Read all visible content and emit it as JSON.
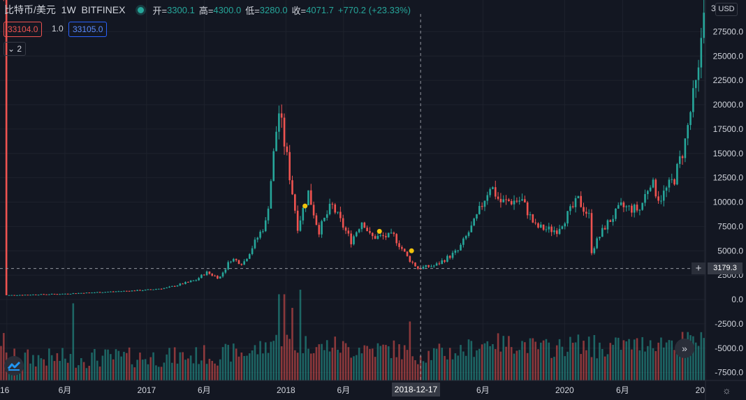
{
  "header": {
    "symbol": "比特币/美元",
    "interval": "1W",
    "exchange": "BITFINEX",
    "open_label": "开=",
    "open": "3300.1",
    "high_label": "高=",
    "high": "4300.0",
    "low_label": "低=",
    "low": "3280.0",
    "close_label": "收=",
    "close": "4071.7",
    "change": "+770.2 (+23.33%)"
  },
  "trade": {
    "sell_price": "33104.0",
    "quantity": "1.0",
    "buy_price": "33105.0"
  },
  "indicators": {
    "collapse_label": "2",
    "collapse_icon": "chevron-down-icon"
  },
  "currency": "USD",
  "crosshair": {
    "price_label": "3179.3",
    "date_label": "2018-12-17",
    "plus_icon": "plus-icon"
  },
  "controls": {
    "scroll_icon": "fast-forward-icon",
    "settings_icon": "gear-icon",
    "logo_icon": "tradingview-logo-icon"
  },
  "colors": {
    "up": "#26a69a",
    "down": "#ef5350",
    "background": "#131722",
    "grid": "#1e222d",
    "marker": "#f0c20c"
  },
  "chart_data": {
    "type": "candlestick",
    "y_ticks": [
      "27500.0",
      "25000.0",
      "22500.0",
      "20000.0",
      "17500.0",
      "15000.0",
      "12500.0",
      "10000.0",
      "7500.0",
      "5000.0",
      "2500.0",
      "0.0",
      "-2500.0",
      "-5000.0",
      "-7500.0"
    ],
    "y_top_partial_label": "3",
    "x_ticks": [
      {
        "date": "2016-01-01",
        "label": "16"
      },
      {
        "date": "2016-06-01",
        "label": "6月"
      },
      {
        "date": "2017-01-01",
        "label": "2017"
      },
      {
        "date": "2017-06-01",
        "label": "6月"
      },
      {
        "date": "2018-01-01",
        "label": "2018"
      },
      {
        "date": "2018-06-01",
        "label": "6月"
      },
      {
        "date": "2019-06-01",
        "label": "6月"
      },
      {
        "date": "2020-01-01",
        "label": "2020"
      },
      {
        "date": "2020-06-01",
        "label": "6月"
      },
      {
        "date": "2021-01-01",
        "label": "20"
      }
    ],
    "ylim": [
      -8500,
      30000
    ],
    "xlim": [
      "2015-12-14",
      "2021-01-04"
    ],
    "price_path": [
      [
        "2016-01-01",
        430
      ],
      [
        "2016-06-01",
        580
      ],
      [
        "2016-12-31",
        960
      ],
      [
        "2017-03-01",
        1200
      ],
      [
        "2017-05-15",
        2000
      ],
      [
        "2017-06-10",
        2800
      ],
      [
        "2017-07-15",
        2200
      ],
      [
        "2017-08-15",
        4200
      ],
      [
        "2017-09-15",
        3700
      ],
      [
        "2017-10-15",
        5800
      ],
      [
        "2017-11-15",
        8000
      ],
      [
        "2017-12-17",
        19500
      ],
      [
        "2018-01-08",
        14500
      ],
      [
        "2018-02-05",
        7500
      ],
      [
        "2018-03-05",
        11000
      ],
      [
        "2018-04-01",
        7000
      ],
      [
        "2018-05-05",
        9700
      ],
      [
        "2018-06-25",
        6000
      ],
      [
        "2018-07-25",
        8200
      ],
      [
        "2018-08-15",
        6400
      ],
      [
        "2018-10-15",
        6500
      ],
      [
        "2018-11-20",
        4300
      ],
      [
        "2018-12-17",
        3200
      ],
      [
        "2019-02-01",
        3500
      ],
      [
        "2019-04-01",
        5000
      ],
      [
        "2019-05-15",
        8000
      ],
      [
        "2019-06-25",
        11800
      ],
      [
        "2019-07-20",
        10000
      ],
      [
        "2019-09-15",
        10200
      ],
      [
        "2019-10-20",
        7500
      ],
      [
        "2019-11-20",
        7200
      ],
      [
        "2019-12-15",
        7100
      ],
      [
        "2020-02-10",
        10200
      ],
      [
        "2020-03-10",
        8500
      ],
      [
        "2020-03-16",
        5000
      ],
      [
        "2020-04-20",
        7500
      ],
      [
        "2020-06-01",
        9500
      ],
      [
        "2020-07-20",
        9200
      ],
      [
        "2020-08-17",
        12200
      ],
      [
        "2020-09-10",
        10300
      ],
      [
        "2020-10-20",
        12500
      ],
      [
        "2020-11-15",
        16000
      ],
      [
        "2020-12-01",
        19500
      ],
      [
        "2020-12-21",
        23000
      ],
      [
        "2021-01-04",
        31000
      ]
    ],
    "markers": [
      {
        "date": "2018-02-20",
        "value": 9600
      },
      {
        "date": "2018-09-03",
        "value": 7000
      },
      {
        "date": "2018-11-26",
        "value": 5000
      }
    ],
    "volume_spikes": [
      {
        "date": "2016-06-20",
        "value": 1.7
      },
      {
        "date": "2017-12-11",
        "value": 1.9
      },
      {
        "date": "2017-12-25",
        "value": 1.9
      },
      {
        "date": "2018-02-05",
        "value": 2.0
      },
      {
        "date": "2018-01-15",
        "value": 1.6
      },
      {
        "date": "2018-11-19",
        "value": 1.3
      },
      {
        "date": "2020-03-16",
        "value": 1.0
      },
      {
        "date": "2019-06-24",
        "value": 0.8
      }
    ]
  }
}
